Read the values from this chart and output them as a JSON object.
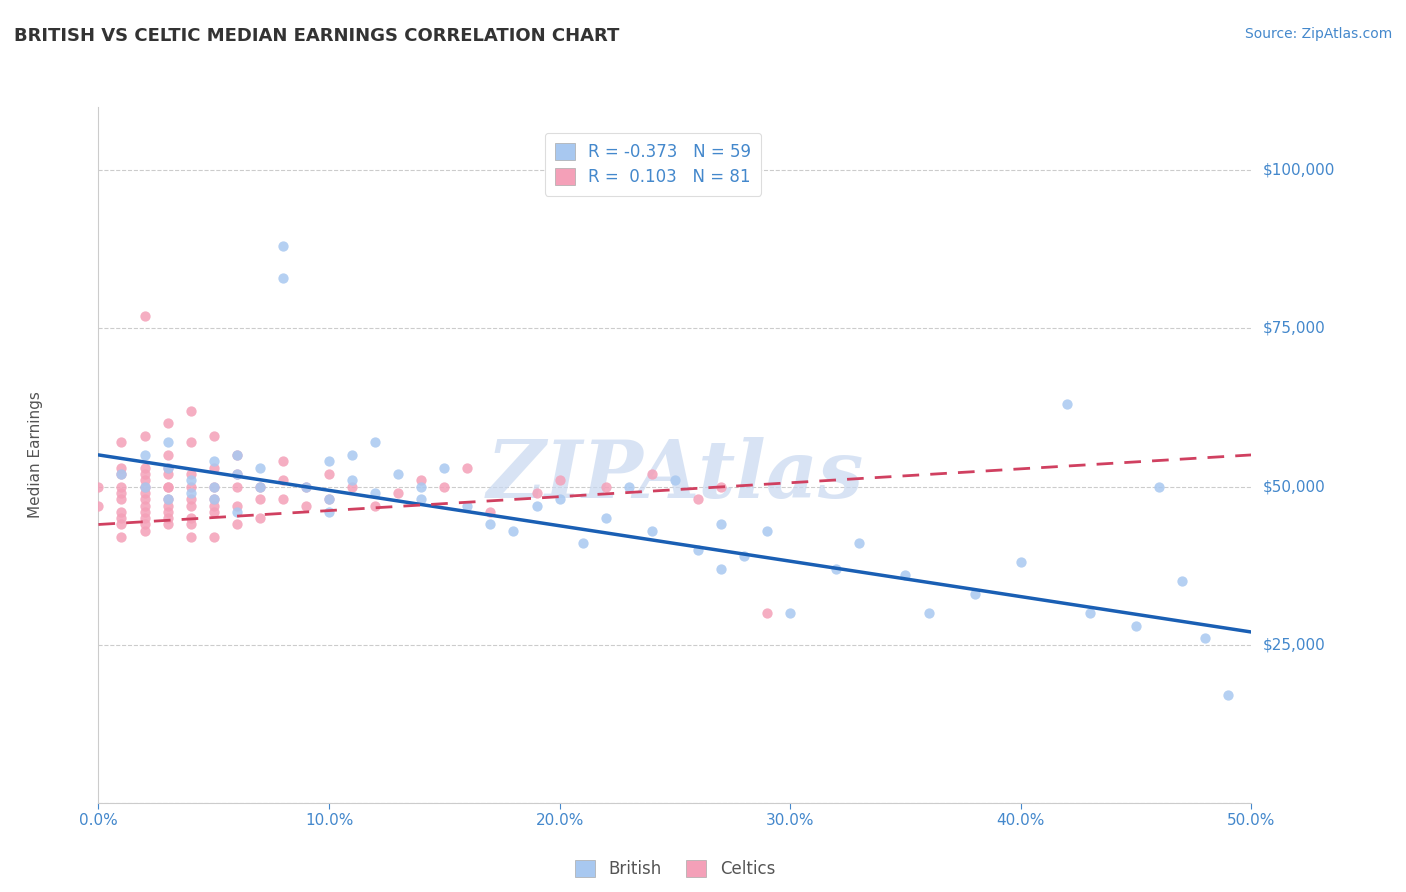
{
  "title": "BRITISH VS CELTIC MEDIAN EARNINGS CORRELATION CHART",
  "source_text": "Source: ZipAtlas.com",
  "ylabel": "Median Earnings",
  "xlim": [
    0.0,
    0.5
  ],
  "ylim": [
    0,
    110000
  ],
  "yticks": [
    0,
    25000,
    50000,
    75000,
    100000
  ],
  "ytick_labels": [
    "",
    "$25,000",
    "$50,000",
    "$75,000",
    "$100,000"
  ],
  "xticks": [
    0.0,
    0.1,
    0.2,
    0.3,
    0.4,
    0.5
  ],
  "xtick_labels": [
    "0.0%",
    "10.0%",
    "20.0%",
    "30.0%",
    "40.0%",
    "50.0%"
  ],
  "legend_R_british": "-0.373",
  "legend_N_british": "59",
  "legend_R_celtics": "0.103",
  "legend_N_celtics": "81",
  "british_color": "#a8c8f0",
  "celtics_color": "#f4a0b8",
  "british_line_color": "#1a5fb4",
  "celtics_line_color": "#d04060",
  "grid_color": "#cccccc",
  "axis_color": "#4488cc",
  "watermark": "ZIPAtlas",
  "watermark_color": "#c8d8f0",
  "background_color": "#ffffff",
  "british_line_y0": 55000,
  "british_line_y1": 27000,
  "celtics_line_y0": 44000,
  "celtics_line_y1": 55000,
  "british_x": [
    0.01,
    0.02,
    0.02,
    0.03,
    0.03,
    0.03,
    0.04,
    0.04,
    0.05,
    0.05,
    0.05,
    0.06,
    0.06,
    0.06,
    0.07,
    0.07,
    0.08,
    0.08,
    0.09,
    0.1,
    0.1,
    0.1,
    0.11,
    0.11,
    0.12,
    0.12,
    0.13,
    0.14,
    0.14,
    0.15,
    0.16,
    0.17,
    0.18,
    0.19,
    0.2,
    0.21,
    0.22,
    0.23,
    0.24,
    0.25,
    0.26,
    0.27,
    0.27,
    0.28,
    0.29,
    0.3,
    0.32,
    0.33,
    0.35,
    0.36,
    0.38,
    0.4,
    0.42,
    0.43,
    0.45,
    0.46,
    0.47,
    0.48,
    0.49
  ],
  "british_y": [
    52000,
    50000,
    55000,
    48000,
    53000,
    57000,
    51000,
    49000,
    54000,
    48000,
    50000,
    52000,
    46000,
    55000,
    50000,
    53000,
    83000,
    88000,
    50000,
    48000,
    54000,
    46000,
    51000,
    55000,
    49000,
    57000,
    52000,
    48000,
    50000,
    53000,
    47000,
    44000,
    43000,
    47000,
    48000,
    41000,
    45000,
    50000,
    43000,
    51000,
    40000,
    37000,
    44000,
    39000,
    43000,
    30000,
    37000,
    41000,
    36000,
    30000,
    33000,
    38000,
    63000,
    30000,
    28000,
    50000,
    35000,
    26000,
    17000
  ],
  "celtics_x": [
    0.0,
    0.0,
    0.01,
    0.01,
    0.01,
    0.01,
    0.01,
    0.01,
    0.01,
    0.01,
    0.01,
    0.01,
    0.02,
    0.02,
    0.02,
    0.02,
    0.02,
    0.02,
    0.02,
    0.02,
    0.02,
    0.02,
    0.02,
    0.02,
    0.02,
    0.03,
    0.03,
    0.03,
    0.03,
    0.03,
    0.03,
    0.03,
    0.03,
    0.03,
    0.03,
    0.03,
    0.04,
    0.04,
    0.04,
    0.04,
    0.04,
    0.04,
    0.04,
    0.04,
    0.04,
    0.05,
    0.05,
    0.05,
    0.05,
    0.05,
    0.05,
    0.05,
    0.06,
    0.06,
    0.06,
    0.06,
    0.06,
    0.07,
    0.07,
    0.07,
    0.08,
    0.08,
    0.08,
    0.09,
    0.09,
    0.1,
    0.1,
    0.11,
    0.12,
    0.13,
    0.14,
    0.15,
    0.16,
    0.17,
    0.19,
    0.2,
    0.22,
    0.24,
    0.26,
    0.27,
    0.29
  ],
  "celtics_y": [
    50000,
    47000,
    52000,
    48000,
    45000,
    53000,
    42000,
    57000,
    46000,
    50000,
    44000,
    49000,
    51000,
    47000,
    53000,
    45000,
    58000,
    49000,
    44000,
    77000,
    46000,
    50000,
    43000,
    48000,
    52000,
    50000,
    47000,
    53000,
    45000,
    60000,
    44000,
    48000,
    52000,
    46000,
    50000,
    55000,
    48000,
    45000,
    52000,
    42000,
    57000,
    47000,
    50000,
    44000,
    62000,
    50000,
    47000,
    53000,
    42000,
    58000,
    46000,
    48000,
    50000,
    47000,
    44000,
    52000,
    55000,
    50000,
    48000,
    45000,
    51000,
    48000,
    54000,
    47000,
    50000,
    48000,
    52000,
    50000,
    47000,
    49000,
    51000,
    50000,
    53000,
    46000,
    49000,
    51000,
    50000,
    52000,
    48000,
    50000,
    30000
  ]
}
